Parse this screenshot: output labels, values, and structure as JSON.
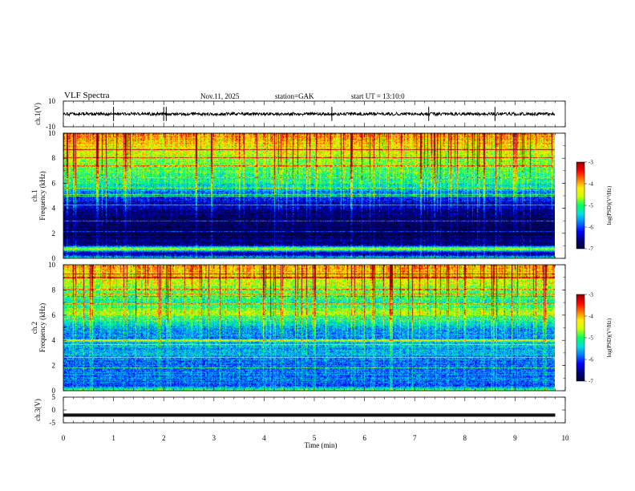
{
  "header": {
    "title": "VLF Spectra",
    "date": "Nov.11, 2025",
    "station": "station=GAK",
    "start": "start UT =   13:10:0"
  },
  "chart_data": [
    {
      "type": "line",
      "name": "ch1-waveform",
      "ylabel": "ch.1(V)",
      "ylim": [
        -10,
        10
      ],
      "yticks": [
        "10",
        "-10"
      ],
      "x_range_min": [
        0,
        9.8
      ],
      "baseline_value": 0,
      "noise_amplitude": 1.2,
      "spikes_min": [
        1.0,
        2.0,
        2.05,
        5.35,
        7.28,
        8.6
      ]
    },
    {
      "type": "heatmap",
      "name": "ch1-spectrogram",
      "ylabel": "ch.1\nFrequency (kHz)",
      "ylim": [
        0,
        10
      ],
      "yticks": [
        "0",
        "2",
        "4",
        "6",
        "8",
        "10"
      ],
      "x_range_min": [
        0,
        9.8
      ],
      "log_psd_range": [
        -7,
        -3
      ],
      "profile": [
        {
          "f": 0.0,
          "v": -5.0
        },
        {
          "f": 0.4,
          "v": -6.8
        },
        {
          "f": 0.8,
          "v": -4.6
        },
        {
          "f": 1.1,
          "v": -6.6
        },
        {
          "f": 2.0,
          "v": -6.9
        },
        {
          "f": 3.0,
          "v": -6.8
        },
        {
          "f": 4.0,
          "v": -6.6
        },
        {
          "f": 5.0,
          "v": -6.0
        },
        {
          "f": 5.5,
          "v": -5.6
        },
        {
          "f": 6.0,
          "v": -5.2
        },
        {
          "f": 7.0,
          "v": -4.9
        },
        {
          "f": 8.0,
          "v": -4.6
        },
        {
          "f": 9.0,
          "v": -4.2
        },
        {
          "f": 10.0,
          "v": -3.8
        }
      ],
      "colorbar": {
        "ticks": [
          "-3",
          "-4",
          "-5",
          "-6",
          "-7"
        ],
        "label": "log(PSD)(V²/Hz)"
      }
    },
    {
      "type": "heatmap",
      "name": "ch2-spectrogram",
      "ylabel": "ch.2\nFrequency (kHz)",
      "ylim": [
        0,
        10
      ],
      "yticks": [
        "0",
        "2",
        "4",
        "6",
        "8",
        "10"
      ],
      "x_range_min": [
        0,
        9.8
      ],
      "log_psd_range": [
        -7,
        -3
      ],
      "profile": [
        {
          "f": 0.0,
          "v": -4.8
        },
        {
          "f": 0.4,
          "v": -6.0
        },
        {
          "f": 1.0,
          "v": -5.8
        },
        {
          "f": 2.0,
          "v": -5.9
        },
        {
          "f": 3.0,
          "v": -5.6
        },
        {
          "f": 4.0,
          "v": -5.7
        },
        {
          "f": 5.0,
          "v": -5.6
        },
        {
          "f": 5.8,
          "v": -5.0
        },
        {
          "f": 6.2,
          "v": -4.6
        },
        {
          "f": 7.0,
          "v": -5.2
        },
        {
          "f": 8.0,
          "v": -4.8
        },
        {
          "f": 9.0,
          "v": -4.3
        },
        {
          "f": 10.0,
          "v": -4.0
        }
      ],
      "colorbar": {
        "ticks": [
          "-3",
          "-4",
          "-5",
          "-6",
          "-7"
        ],
        "label": "log(PSD)(V²/Hz)"
      }
    },
    {
      "type": "line",
      "name": "ch3-waveform",
      "ylabel": "ch.3(V)",
      "ylim": [
        -5,
        5
      ],
      "yticks": [
        "5",
        "0",
        "-5"
      ],
      "x_range_min": [
        0,
        9.8
      ],
      "baseline_value": -2.0
    }
  ],
  "time_axis": {
    "label": "Time (min)",
    "ticks": [
      "0",
      "1",
      "2",
      "3",
      "4",
      "5",
      "6",
      "7",
      "8",
      "9",
      "10"
    ],
    "range": [
      0,
      10
    ]
  },
  "colors": {
    "colormap": [
      "#000033",
      "#000080",
      "#0000ff",
      "#0077ff",
      "#00e0e0",
      "#00ff60",
      "#c8ff00",
      "#ffee00",
      "#ff7700",
      "#ff0000",
      "#900000"
    ]
  }
}
